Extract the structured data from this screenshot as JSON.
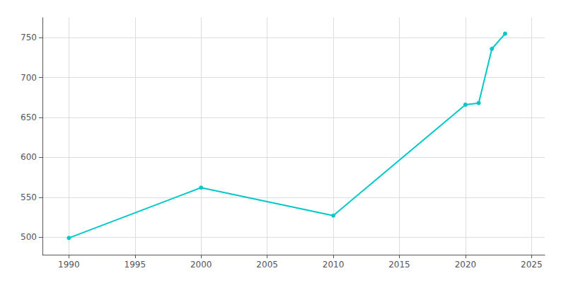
{
  "chart_data": {
    "type": "line",
    "x": [
      1990,
      2000,
      2010,
      2020,
      2021,
      2022,
      2023
    ],
    "values": [
      499,
      562,
      527,
      666,
      668,
      736,
      755
    ],
    "color": "#00C8C8",
    "marker": "circle",
    "xlim": [
      1988,
      2026
    ],
    "ylim": [
      478,
      775
    ],
    "xticks": [
      1990,
      1995,
      2000,
      2005,
      2010,
      2015,
      2020,
      2025
    ],
    "yticks": [
      500,
      550,
      600,
      650,
      700,
      750
    ],
    "grid": true
  }
}
